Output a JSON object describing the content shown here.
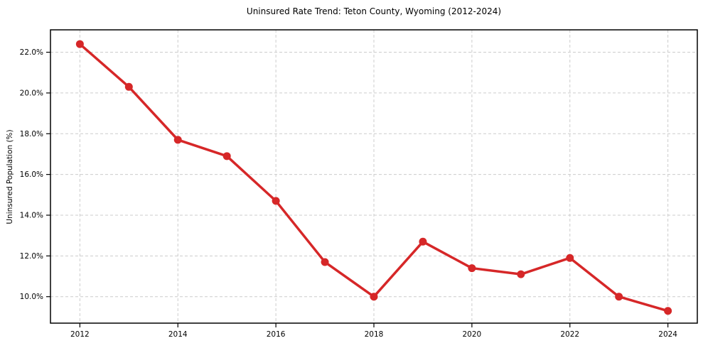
{
  "page": {
    "background_color": "#ffffff"
  },
  "chart_data": {
    "type": "line",
    "title": "Uninsured Rate Trend: Teton County, Wyoming (2012-2024)",
    "xlabel": "",
    "ylabel": "Uninsured Population (%)",
    "x": [
      2012,
      2013,
      2014,
      2015,
      2016,
      2017,
      2018,
      2019,
      2020,
      2021,
      2022,
      2023,
      2024
    ],
    "values": [
      22.4,
      20.3,
      17.7,
      16.9,
      14.7,
      11.7,
      10.0,
      12.7,
      11.4,
      11.1,
      11.9,
      10.0,
      9.3
    ],
    "xticks": [
      2012,
      2014,
      2016,
      2018,
      2020,
      2022,
      2024
    ],
    "xtick_labels": [
      "2012",
      "2014",
      "2016",
      "2018",
      "2020",
      "2022",
      "2024"
    ],
    "yticks": [
      10,
      12,
      14,
      16,
      18,
      20,
      22
    ],
    "ytick_labels": [
      "10.0%",
      "12.0%",
      "14.0%",
      "16.0%",
      "18.0%",
      "20.0%",
      "22.0%"
    ],
    "xlim": [
      2011.4,
      2024.6
    ],
    "ylim": [
      8.7,
      23.1
    ],
    "grid": true,
    "grid_style": "dashed",
    "legend_position": "none",
    "line_color": "#d62728",
    "marker": "circle",
    "grid_color": "#cccccc",
    "spine_color": "#000000"
  }
}
